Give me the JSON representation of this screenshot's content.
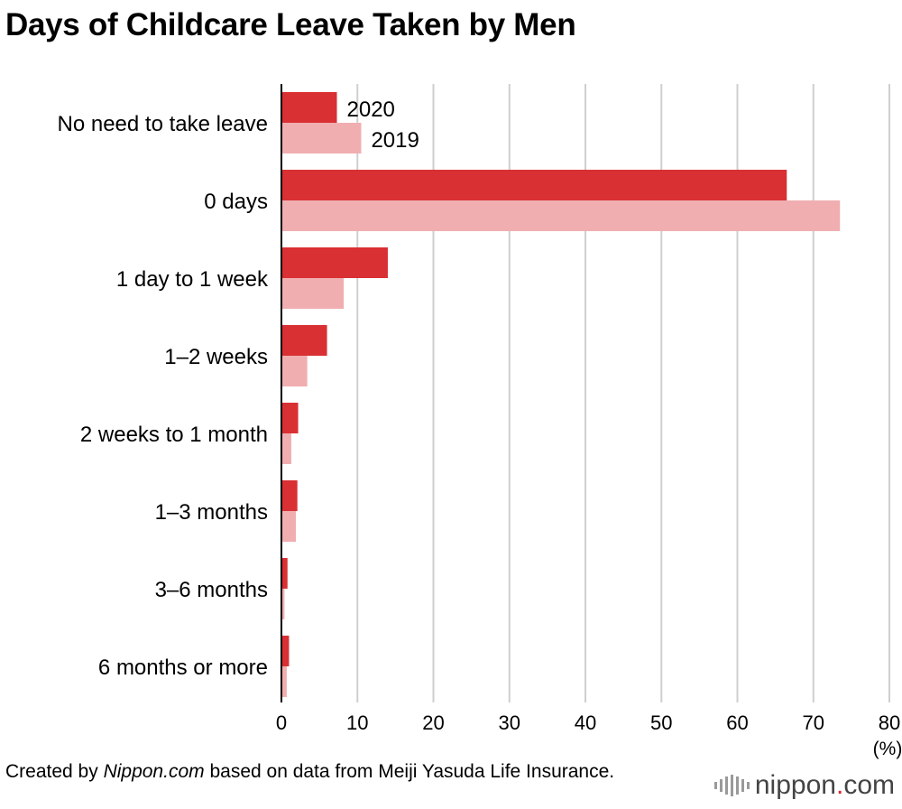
{
  "title": "Days of Childcare Leave Taken by Men",
  "chart_data": {
    "type": "bar",
    "orientation": "horizontal",
    "title": "Days of Childcare Leave Taken by Men",
    "categories": [
      "No need to take leave",
      "0 days",
      "1 day to 1 week",
      "1–2 weeks",
      "2 weeks to 1 month",
      "1–3 months",
      "3–6 months",
      "6 months or more"
    ],
    "series": [
      {
        "name": "2020",
        "color": "#d93034",
        "values": [
          7.3,
          66.5,
          14.0,
          6.0,
          2.2,
          2.1,
          0.8,
          1.0
        ]
      },
      {
        "name": "2019",
        "color": "#f0aeb0",
        "values": [
          10.5,
          73.5,
          8.2,
          3.4,
          1.3,
          1.9,
          0.4,
          0.7
        ]
      }
    ],
    "xticks": [
      "0",
      "10",
      "20",
      "30",
      "40",
      "50",
      "60",
      "70",
      "80"
    ],
    "xlim": [
      0,
      80
    ],
    "unit_label": "(%)",
    "grid": true,
    "legend": "inline labels beside the first category's bars"
  },
  "footer": {
    "prefix": "Created by ",
    "source_italic": "Nippon.com",
    "suffix": " based on data from Meiji Yasuda Life Insurance."
  },
  "logo": {
    "name": "nippon",
    "dot": ".",
    "tld": "com"
  }
}
